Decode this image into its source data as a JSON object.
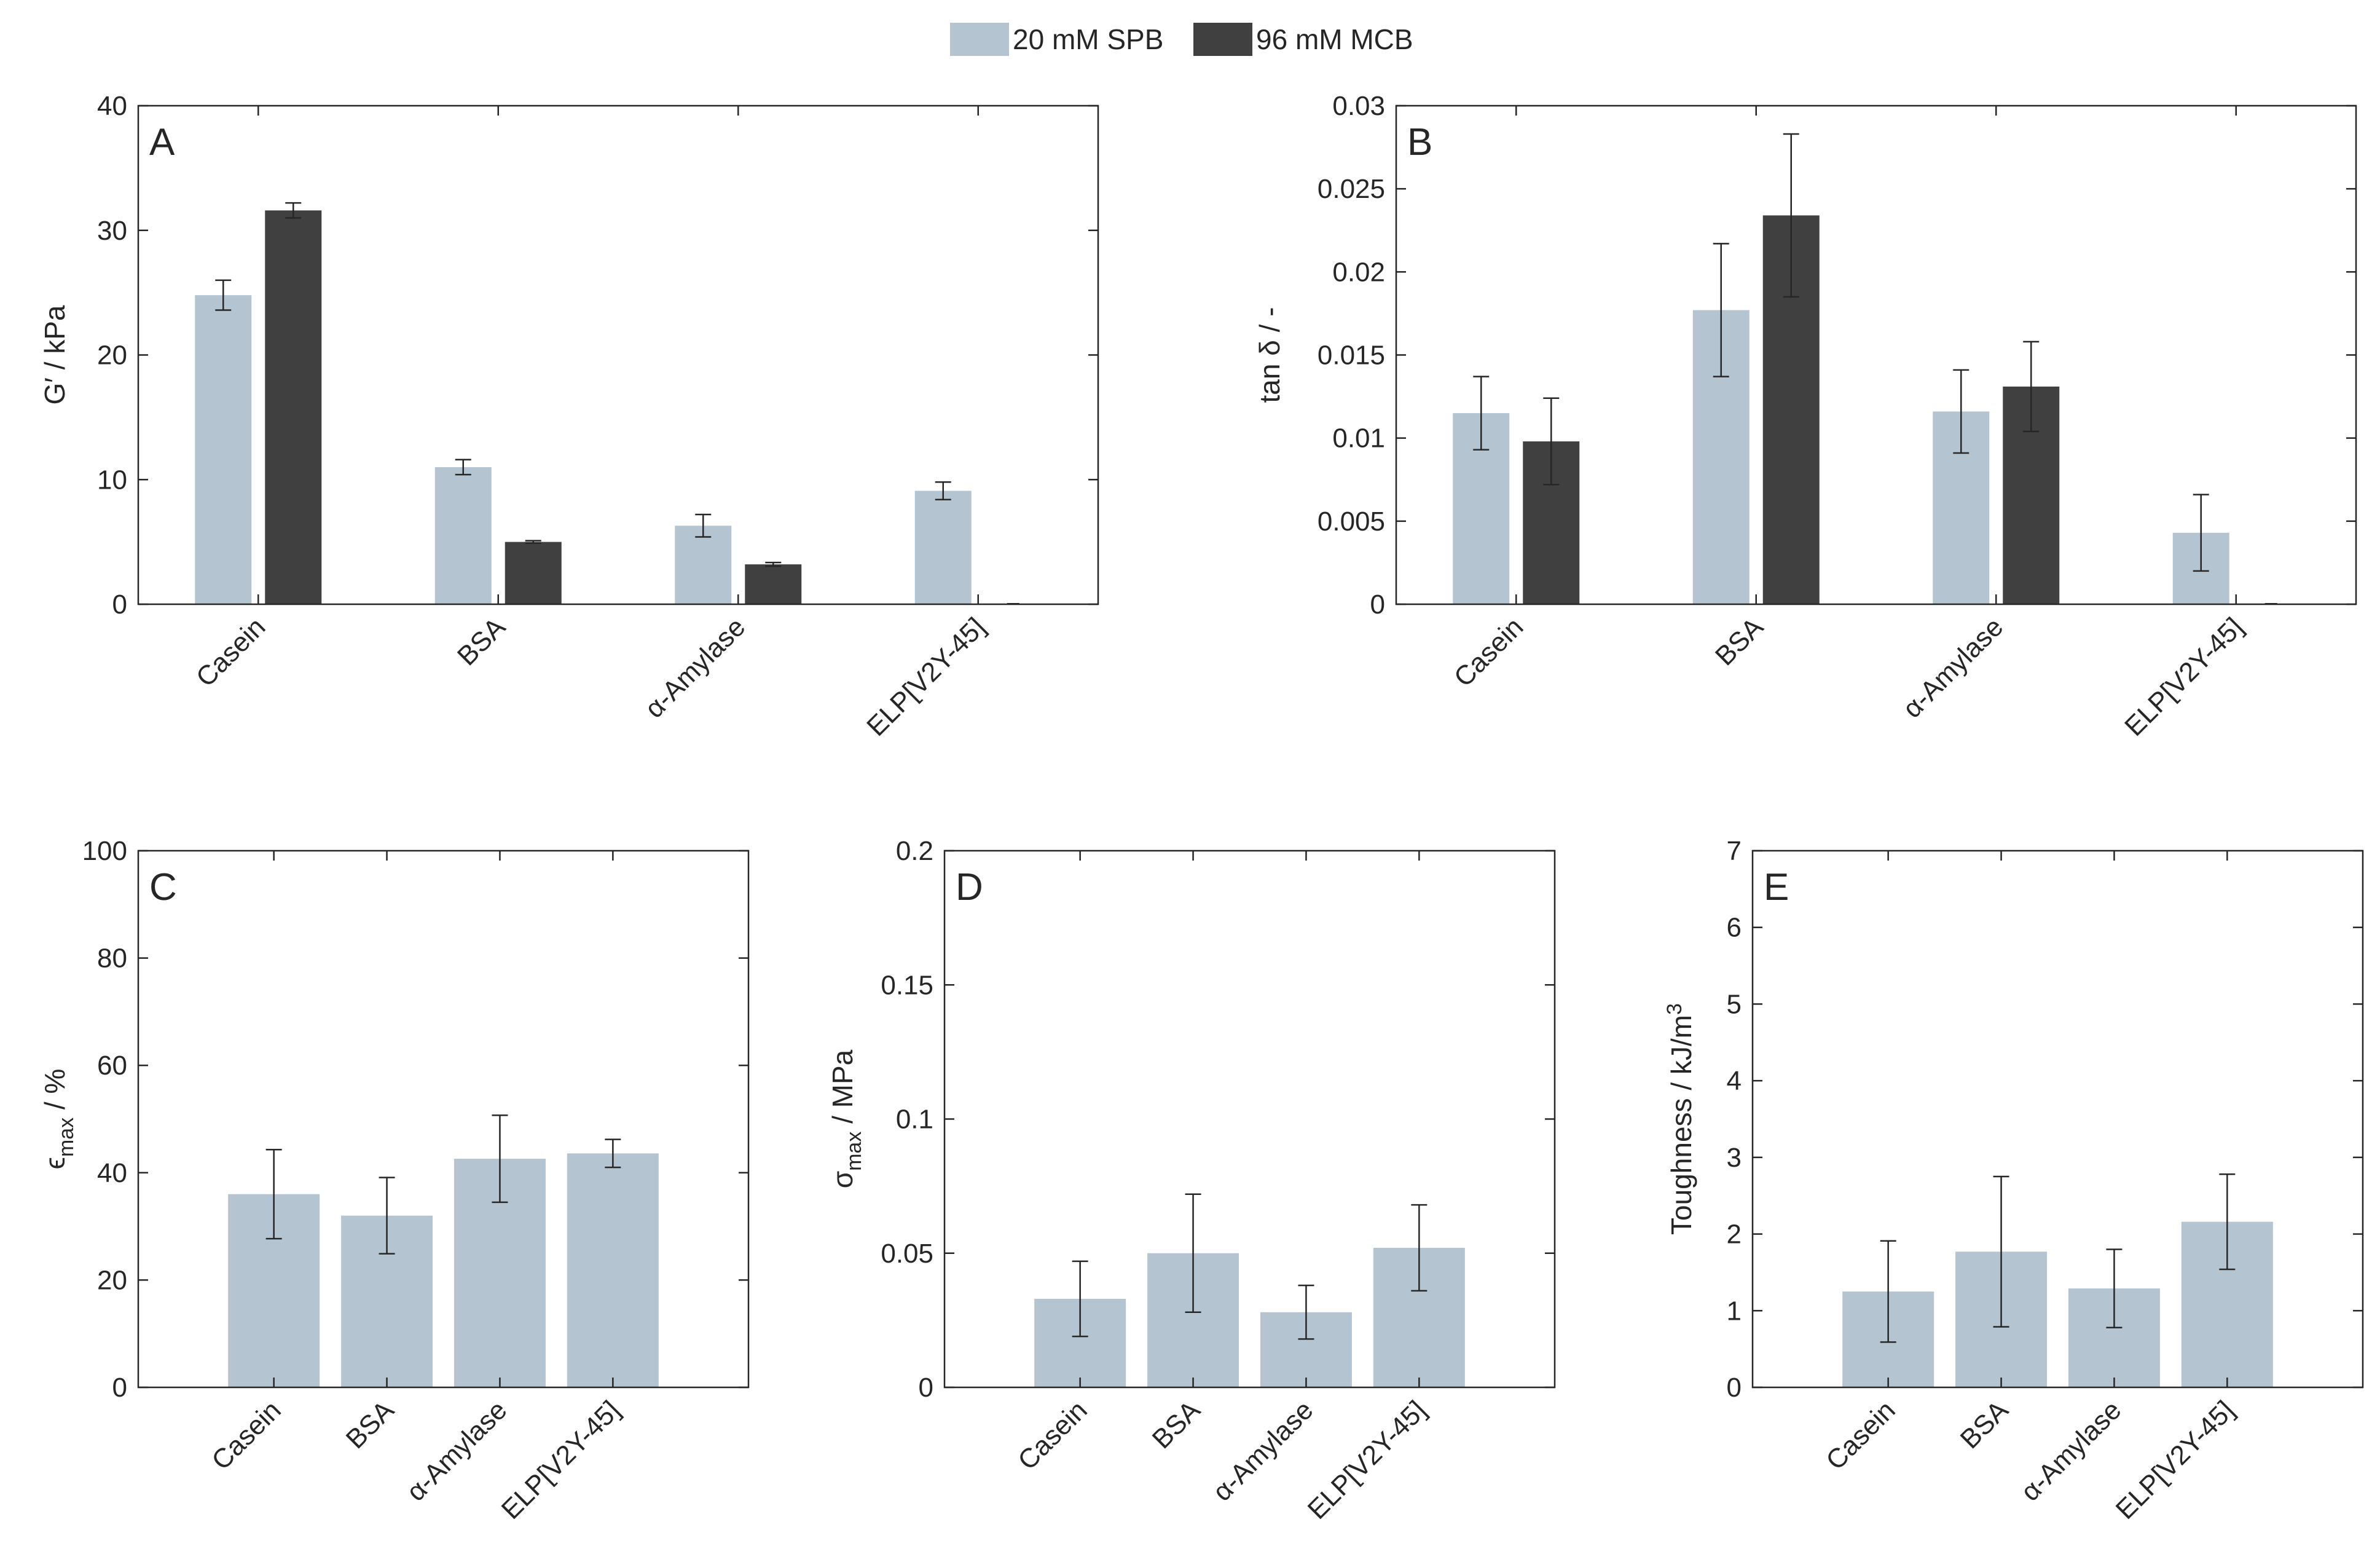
{
  "legend": {
    "items": [
      {
        "label": "20 mM SPB",
        "color": "#b4c5d1"
      },
      {
        "label": "96 mM MCB",
        "color": "#404040"
      }
    ]
  },
  "colors": {
    "spb": "#b4c5d1",
    "mcb": "#404040",
    "axis": "#262626",
    "errorbar": "#262626"
  },
  "chart_data": [
    {
      "type": "bar",
      "panel_label": "A",
      "ylabel": "G′ / kPa",
      "ylim": [
        0,
        40
      ],
      "yticks": [
        "0",
        "10",
        "20",
        "30",
        "40"
      ],
      "categories": [
        "Casein",
        "BSA",
        "α-Amylase",
        "ELP[V2Y-45]"
      ],
      "series": [
        {
          "name": "20 mM SPB",
          "values": [
            24.8,
            11.0,
            6.3,
            9.1
          ],
          "errors": [
            1.2,
            0.6,
            0.9,
            0.7
          ]
        },
        {
          "name": "96 mM MCB",
          "values": [
            31.6,
            5.0,
            3.2,
            0
          ],
          "errors": [
            0.6,
            0.1,
            0.15,
            0
          ]
        }
      ]
    },
    {
      "type": "bar",
      "panel_label": "B",
      "ylabel": "tan δ / -",
      "ylim": [
        0,
        0.03
      ],
      "yticks": [
        "0",
        "0.005",
        "0.01",
        "0.015",
        "0.02",
        "0.025",
        "0.03"
      ],
      "categories": [
        "Casein",
        "BSA",
        "α-Amylase",
        "ELP[V2Y-45]"
      ],
      "series": [
        {
          "name": "20 mM SPB",
          "values": [
            0.0115,
            0.0177,
            0.0116,
            0.0043
          ],
          "errors": [
            0.0022,
            0.004,
            0.0025,
            0.0023
          ]
        },
        {
          "name": "96 mM MCB",
          "values": [
            0.0098,
            0.0234,
            0.0131,
            0
          ],
          "errors": [
            0.0026,
            0.0049,
            0.0027,
            0
          ]
        }
      ]
    },
    {
      "type": "bar",
      "panel_label": "C",
      "ylabel_main": "ϵ",
      "ylabel_sub": "max",
      "ylabel_rest": " / %",
      "ylim": [
        0,
        100
      ],
      "yticks": [
        "0",
        "20",
        "40",
        "60",
        "80",
        "100"
      ],
      "categories": [
        "Casein",
        "BSA",
        "α-Amylase",
        "ELP[V2Y-45]"
      ],
      "series": [
        {
          "values": [
            36,
            32,
            42.6,
            43.6
          ],
          "errors": [
            8.3,
            7.1,
            8.1,
            2.6
          ]
        }
      ]
    },
    {
      "type": "bar",
      "panel_label": "D",
      "ylabel_main": "σ",
      "ylabel_sub": "max",
      "ylabel_rest": " / MPa",
      "ylim": [
        0,
        0.2
      ],
      "yticks": [
        "0",
        "0.05",
        "0.1",
        "0.15",
        "0.2"
      ],
      "categories": [
        "Casein",
        "BSA",
        "α-Amylase",
        "ELP[V2Y-45]"
      ],
      "series": [
        {
          "values": [
            0.033,
            0.05,
            0.028,
            0.052
          ],
          "errors": [
            0.014,
            0.022,
            0.01,
            0.016
          ]
        }
      ]
    },
    {
      "type": "bar",
      "panel_label": "E",
      "ylabel_main": "Toughness / kJ/m",
      "ylabel_sup": "3",
      "ylim": [
        0,
        7
      ],
      "yticks": [
        "0",
        "1",
        "2",
        "3",
        "4",
        "5",
        "6",
        "7"
      ],
      "categories": [
        "Casein",
        "BSA",
        "α-Amylase",
        "ELP[V2Y-45]"
      ],
      "series": [
        {
          "values": [
            1.25,
            1.77,
            1.29,
            2.16
          ],
          "errors": [
            0.66,
            0.98,
            0.51,
            0.62
          ]
        }
      ]
    }
  ]
}
